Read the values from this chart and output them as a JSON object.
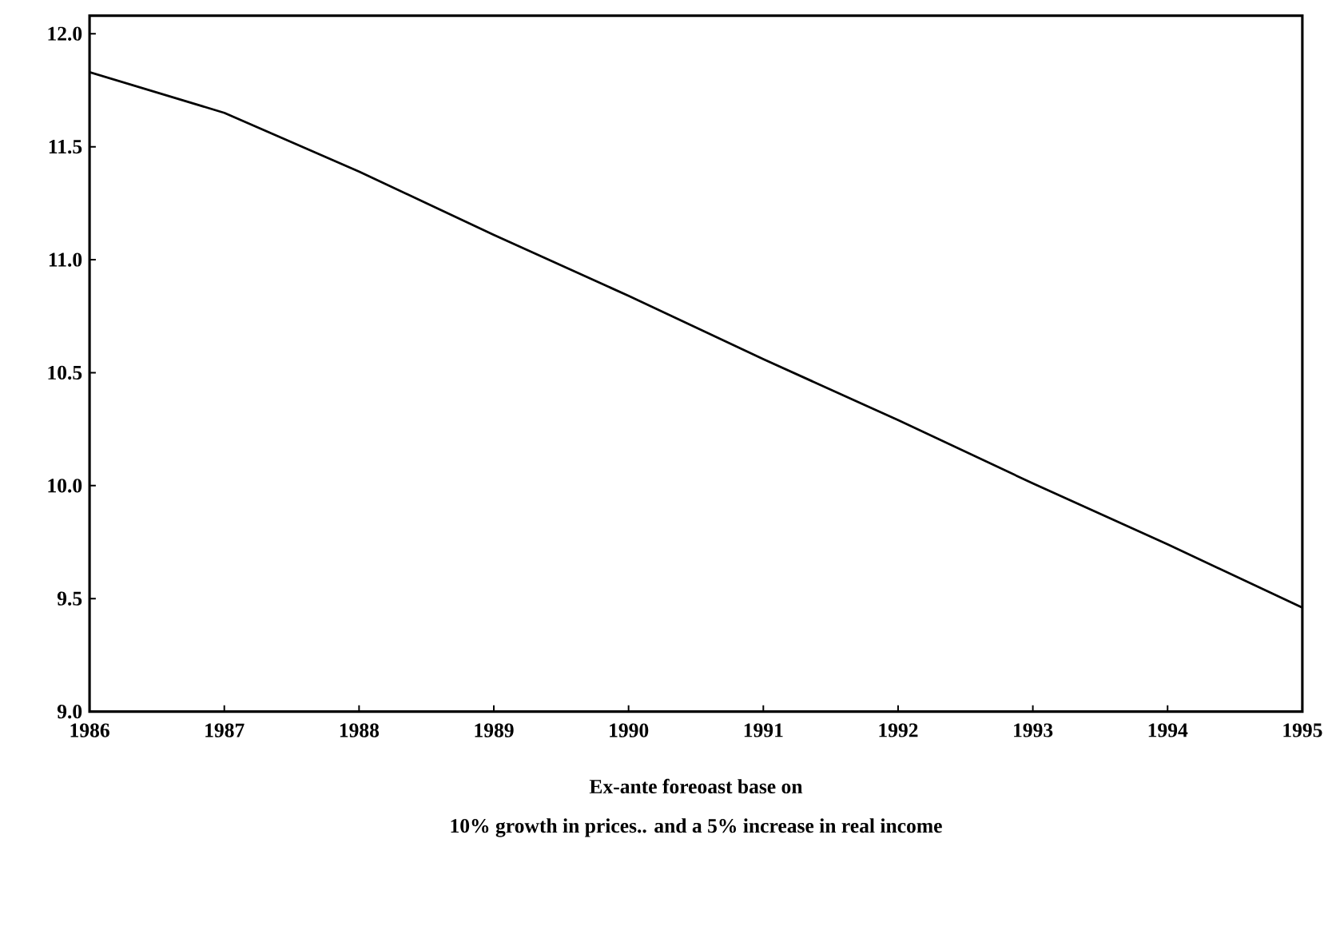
{
  "chart_data": {
    "type": "line",
    "x": [
      1986,
      1987,
      1988,
      1989,
      1990,
      1991,
      1992,
      1993,
      1994,
      1995
    ],
    "values": [
      11.83,
      11.65,
      11.39,
      11.11,
      10.84,
      10.56,
      10.29,
      10.01,
      9.74,
      9.46
    ],
    "color": "#000000",
    "xlim": [
      1986,
      1995
    ],
    "xticks": [
      1986,
      1987,
      1988,
      1989,
      1990,
      1991,
      1992,
      1993,
      1994,
      1995
    ],
    "ylim": [
      9.0,
      12.08
    ],
    "yticks": [
      {
        "value": 9.0,
        "label": "9.0"
      },
      {
        "value": 9.5,
        "label": "9.5"
      },
      {
        "value": 10.0,
        "label": "10.0"
      },
      {
        "value": 10.5,
        "label": "10.5"
      },
      {
        "value": 11.0,
        "label": "11.0"
      },
      {
        "value": 11.5,
        "label": "11.5"
      },
      {
        "value": 12.0,
        "label": "12.0"
      }
    ],
    "annotations": [
      "Ex-ante foreoast base on",
      "10% growth in prices.. and a 5% increase in real income"
    ]
  }
}
